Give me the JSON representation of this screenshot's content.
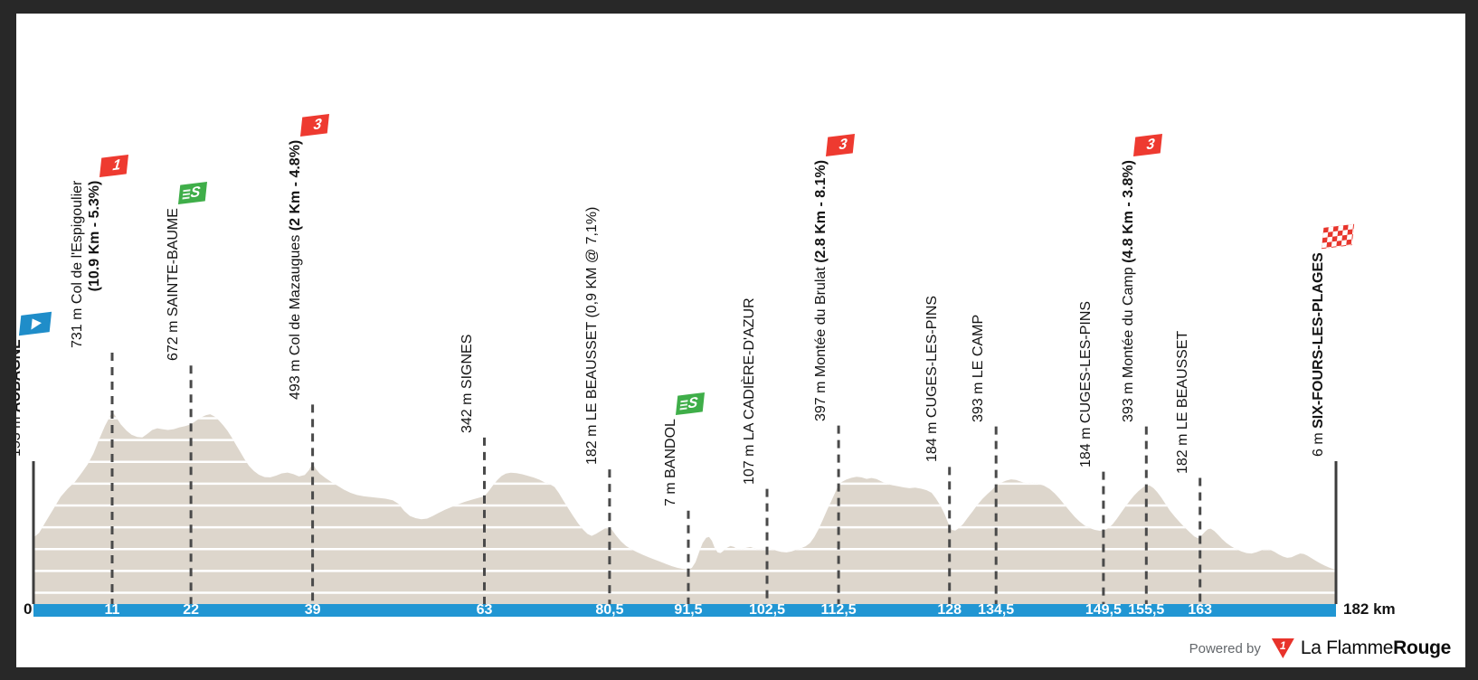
{
  "colors": {
    "frame": "#282828",
    "background": "#ffffff",
    "terrain": "#ddd6cc",
    "gridline": "#ffffff",
    "bar": "#2196d3",
    "dash": "#4a4a4a",
    "solid_line": "#3d3d3d",
    "text": "#141414",
    "cat_red": "#ee3a30",
    "sprint_green": "#3fae49",
    "start_blue": "#1f8dc9",
    "finish_red": "#e8352c",
    "brand_red": "#e8332b",
    "powered_gray": "#63676b"
  },
  "axis": {
    "zero_label": "0",
    "end_label": "182 km",
    "ticks": [
      {
        "km": 11,
        "label": "11"
      },
      {
        "km": 22,
        "label": "22"
      },
      {
        "km": 39,
        "label": "39"
      },
      {
        "km": 63,
        "label": "63"
      },
      {
        "km": 80.5,
        "label": "80,5"
      },
      {
        "km": 91.5,
        "label": "91,5"
      },
      {
        "km": 102.5,
        "label": "102,5"
      },
      {
        "km": 112.5,
        "label": "112,5"
      },
      {
        "km": 128,
        "label": "128"
      },
      {
        "km": 134.5,
        "label": "134,5"
      },
      {
        "km": 149.5,
        "label": "149,5"
      },
      {
        "km": 155.5,
        "label": "155,5"
      },
      {
        "km": 163,
        "label": "163"
      }
    ]
  },
  "markers": [
    {
      "km": 0,
      "elev": 153,
      "type": "start",
      "lines": [
        [
          {
            "t": "153 m ",
            "b": false
          },
          {
            "t": "AUBAGNE",
            "b": true
          }
        ]
      ]
    },
    {
      "km": 11,
      "elev": 731,
      "type": "cat1",
      "badge": "1",
      "lines": [
        [
          {
            "t": "731 m Col de l'Espigoulier",
            "b": false
          }
        ],
        [
          {
            "t": "(10.9 Km - 5.3%)",
            "b": true
          }
        ]
      ]
    },
    {
      "km": 22,
      "elev": 672,
      "type": "sprint",
      "badge": "S",
      "lines": [
        [
          {
            "t": "672 m SAINTE-BAUME",
            "b": false
          }
        ]
      ]
    },
    {
      "km": 39,
      "elev": 493,
      "type": "cat3",
      "badge": "3",
      "lines": [
        [
          {
            "t": "493 m Col de Mazaugues ",
            "b": false
          },
          {
            "t": "(2 Km - 4.8%)",
            "b": true
          }
        ]
      ]
    },
    {
      "km": 63,
      "elev": 342,
      "type": "plain",
      "lines": [
        [
          {
            "t": "342 m SIGNES",
            "b": false
          }
        ]
      ]
    },
    {
      "km": 80.5,
      "elev": 182,
      "type": "plain",
      "lines": [
        [
          {
            "t": "182 m LE BEAUSSET (0,9 KM @ 7,1%)",
            "b": false
          }
        ]
      ]
    },
    {
      "km": 91.5,
      "elev": 7,
      "type": "sprint",
      "badge": "S",
      "lines": [
        [
          {
            "t": "7 m BANDOL",
            "b": false
          }
        ]
      ]
    },
    {
      "km": 102.5,
      "elev": 107,
      "type": "plain",
      "lines": [
        [
          {
            "t": "107 m LA CADIÈRE-D'AZUR",
            "b": false
          }
        ]
      ]
    },
    {
      "km": 112.5,
      "elev": 397,
      "type": "cat3",
      "badge": "3",
      "lines": [
        [
          {
            "t": "397 m Montée du Brulat ",
            "b": false
          },
          {
            "t": "(2.8 Km - 8.1%)",
            "b": true
          }
        ]
      ]
    },
    {
      "km": 128,
      "elev": 184,
      "type": "plain",
      "lines": [
        [
          {
            "t": "184 m CUGES-LES-PINS",
            "b": false
          }
        ]
      ]
    },
    {
      "km": 134.5,
      "elev": 393,
      "type": "plain",
      "lines": [
        [
          {
            "t": "393 m LE CAMP",
            "b": false
          }
        ]
      ]
    },
    {
      "km": 149.5,
      "elev": 184,
      "type": "plain",
      "lines": [
        [
          {
            "t": "184 m CUGES-LES-PINS",
            "b": false
          }
        ]
      ]
    },
    {
      "km": 155.5,
      "elev": 393,
      "type": "cat3",
      "badge": "3",
      "lines": [
        [
          {
            "t": "393 m Montée du Camp ",
            "b": false
          },
          {
            "t": "(4.8 Km - 3.8%)",
            "b": true
          }
        ]
      ]
    },
    {
      "km": 163,
      "elev": 182,
      "type": "plain",
      "lines": [
        [
          {
            "t": "182 m LE BEAUSSET",
            "b": false
          }
        ]
      ]
    },
    {
      "km": 182,
      "elev": 6,
      "type": "finish",
      "lines": [
        [
          {
            "t": "6 m ",
            "b": false
          },
          {
            "t": "SIX-FOURS-LES-PLAGES",
            "b": true
          }
        ]
      ]
    }
  ],
  "footer": {
    "powered_by": "Powered by",
    "logo_digit": "1",
    "brand_regular": "La Flamme",
    "brand_bold": "Rouge"
  },
  "chart_data": {
    "type": "area",
    "x_unit": "km",
    "y_unit": "m",
    "x_range": [
      0,
      182
    ],
    "gridline_step_m": 100,
    "legend": "none",
    "waypoints": [
      {
        "km": 0,
        "elev_m": 153,
        "label": "153 m AUBAGNE",
        "marker": "start"
      },
      {
        "km": 11,
        "elev_m": 731,
        "label": "731 m Col de l'Espigoulier (10.9 Km - 5.3%)",
        "marker": "category-1"
      },
      {
        "km": 22,
        "elev_m": 672,
        "label": "672 m SAINTE-BAUME",
        "marker": "sprint"
      },
      {
        "km": 39,
        "elev_m": 493,
        "label": "493 m Col de Mazaugues (2 Km - 4.8%)",
        "marker": "category-3"
      },
      {
        "km": 63,
        "elev_m": 342,
        "label": "342 m SIGNES",
        "marker": "none"
      },
      {
        "km": 80.5,
        "elev_m": 182,
        "label": "182 m LE BEAUSSET (0,9 KM @ 7,1%)",
        "marker": "none"
      },
      {
        "km": 91.5,
        "elev_m": 7,
        "label": "7 m BANDOL",
        "marker": "sprint"
      },
      {
        "km": 102.5,
        "elev_m": 107,
        "label": "107 m LA CADIÈRE-D'AZUR",
        "marker": "none"
      },
      {
        "km": 112.5,
        "elev_m": 397,
        "label": "397 m Montée du Brulat (2.8 Km - 8.1%)",
        "marker": "category-3"
      },
      {
        "km": 128,
        "elev_m": 184,
        "label": "184 m CUGES-LES-PINS",
        "marker": "none"
      },
      {
        "km": 134.5,
        "elev_m": 393,
        "label": "393 m LE CAMP",
        "marker": "none"
      },
      {
        "km": 149.5,
        "elev_m": 184,
        "label": "184 m CUGES-LES-PINS",
        "marker": "none"
      },
      {
        "km": 155.5,
        "elev_m": 393,
        "label": "393 m Montée du Camp (4.8 Km - 3.8%)",
        "marker": "category-3"
      },
      {
        "km": 163,
        "elev_m": 182,
        "label": "182 m LE BEAUSSET",
        "marker": "none"
      },
      {
        "km": 182,
        "elev_m": 6,
        "label": "6 m SIX-FOURS-LES-PLAGES",
        "marker": "finish"
      }
    ],
    "profile": [
      [
        0,
        153
      ],
      [
        0.8,
        175
      ],
      [
        1.8,
        230
      ],
      [
        2.8,
        285
      ],
      [
        3.8,
        340
      ],
      [
        4.8,
        378
      ],
      [
        5.8,
        408
      ],
      [
        6.8,
        452
      ],
      [
        7.6,
        490
      ],
      [
        8.4,
        540
      ],
      [
        9.2,
        605
      ],
      [
        10,
        665
      ],
      [
        10.6,
        703
      ],
      [
        11,
        731
      ],
      [
        11.5,
        707
      ],
      [
        12.2,
        672
      ],
      [
        13,
        643
      ],
      [
        13.7,
        624
      ],
      [
        14.5,
        614
      ],
      [
        15.2,
        612
      ],
      [
        15.9,
        628
      ],
      [
        16.6,
        646
      ],
      [
        17.3,
        654
      ],
      [
        18,
        650
      ],
      [
        18.8,
        646
      ],
      [
        19.6,
        650
      ],
      [
        20.4,
        658
      ],
      [
        21.2,
        664
      ],
      [
        22,
        672
      ],
      [
        22.7,
        688
      ],
      [
        23.4,
        703
      ],
      [
        24.1,
        714
      ],
      [
        24.7,
        718
      ],
      [
        25.3,
        708
      ],
      [
        25.9,
        690
      ],
      [
        26.5,
        668
      ],
      [
        27.1,
        643
      ],
      [
        27.7,
        612
      ],
      [
        28.3,
        578
      ],
      [
        28.9,
        545
      ],
      [
        29.5,
        512
      ],
      [
        30.1,
        482
      ],
      [
        30.8,
        458
      ],
      [
        31.5,
        441
      ],
      [
        32.3,
        430
      ],
      [
        33.1,
        429
      ],
      [
        33.9,
        437
      ],
      [
        34.7,
        447
      ],
      [
        35.5,
        451
      ],
      [
        36.3,
        444
      ],
      [
        37.1,
        433
      ],
      [
        37.9,
        440
      ],
      [
        38.5,
        462
      ],
      [
        39,
        493
      ],
      [
        39.4,
        470
      ],
      [
        40,
        446
      ],
      [
        40.8,
        426
      ],
      [
        41.6,
        408
      ],
      [
        42.5,
        390
      ],
      [
        43.4,
        372
      ],
      [
        44.3,
        358
      ],
      [
        45.2,
        348
      ],
      [
        46.2,
        342
      ],
      [
        47.2,
        338
      ],
      [
        48.2,
        335
      ],
      [
        49.2,
        331
      ],
      [
        50.2,
        324
      ],
      [
        51,
        308
      ],
      [
        51.8,
        275
      ],
      [
        52.6,
        252
      ],
      [
        53.4,
        242
      ],
      [
        54.2,
        237
      ],
      [
        55,
        240
      ],
      [
        55.8,
        252
      ],
      [
        56.6,
        266
      ],
      [
        57.5,
        280
      ],
      [
        58.4,
        293
      ],
      [
        59.3,
        305
      ],
      [
        60.2,
        316
      ],
      [
        61.2,
        326
      ],
      [
        62.1,
        334
      ],
      [
        63,
        342
      ],
      [
        63.6,
        365
      ],
      [
        64.2,
        392
      ],
      [
        64.8,
        416
      ],
      [
        65.4,
        435
      ],
      [
        66,
        446
      ],
      [
        66.7,
        450
      ],
      [
        67.5,
        448
      ],
      [
        68.3,
        443
      ],
      [
        69.1,
        436
      ],
      [
        69.9,
        428
      ],
      [
        70.7,
        418
      ],
      [
        71.5,
        405
      ],
      [
        72.2,
        396
      ],
      [
        72.8,
        385
      ],
      [
        73.4,
        358
      ],
      [
        74,
        325
      ],
      [
        74.7,
        288
      ],
      [
        75.4,
        252
      ],
      [
        76.1,
        218
      ],
      [
        76.8,
        190
      ],
      [
        77.4,
        170
      ],
      [
        78,
        161
      ],
      [
        78.6,
        170
      ],
      [
        79.2,
        182
      ],
      [
        79.8,
        194
      ],
      [
        80.3,
        200
      ],
      [
        80.8,
        190
      ],
      [
        81.4,
        163
      ],
      [
        82.1,
        135
      ],
      [
        82.8,
        115
      ],
      [
        83.6,
        98
      ],
      [
        84.4,
        85
      ],
      [
        85.2,
        73
      ],
      [
        86,
        62
      ],
      [
        86.8,
        52
      ],
      [
        87.6,
        42
      ],
      [
        88.4,
        32
      ],
      [
        89.2,
        22
      ],
      [
        90,
        14
      ],
      [
        90.8,
        9
      ],
      [
        91.5,
        7
      ],
      [
        92,
        14
      ],
      [
        92.5,
        40
      ],
      [
        93,
        85
      ],
      [
        93.5,
        128
      ],
      [
        94,
        152
      ],
      [
        94.4,
        156
      ],
      [
        94.8,
        138
      ],
      [
        95.2,
        105
      ],
      [
        95.6,
        85
      ],
      [
        96,
        82
      ],
      [
        96.4,
        92
      ],
      [
        96.9,
        106
      ],
      [
        97.4,
        115
      ],
      [
        97.9,
        110
      ],
      [
        98.4,
        98
      ],
      [
        99,
        97
      ],
      [
        99.6,
        106
      ],
      [
        100.2,
        110
      ],
      [
        100.8,
        102
      ],
      [
        101.4,
        98
      ],
      [
        102,
        102
      ],
      [
        102.5,
        107
      ],
      [
        103.1,
        101
      ],
      [
        103.8,
        93
      ],
      [
        104.5,
        87
      ],
      [
        105.2,
        85
      ],
      [
        105.9,
        89
      ],
      [
        106.6,
        97
      ],
      [
        107.3,
        105
      ],
      [
        107.9,
        113
      ],
      [
        108.5,
        128
      ],
      [
        109.1,
        155
      ],
      [
        109.7,
        192
      ],
      [
        110.3,
        235
      ],
      [
        110.9,
        280
      ],
      [
        111.5,
        322
      ],
      [
        112,
        358
      ],
      [
        112.5,
        397
      ],
      [
        113,
        409
      ],
      [
        113.6,
        419
      ],
      [
        114.3,
        427
      ],
      [
        115,
        432
      ],
      [
        115.7,
        429
      ],
      [
        116.4,
        422
      ],
      [
        117.1,
        426
      ],
      [
        117.8,
        421
      ],
      [
        118.5,
        410
      ],
      [
        119.2,
        400
      ],
      [
        120,
        393
      ],
      [
        120.8,
        388
      ],
      [
        121.6,
        383
      ],
      [
        122.4,
        379
      ],
      [
        123.2,
        382
      ],
      [
        124,
        377
      ],
      [
        124.8,
        370
      ],
      [
        125.5,
        358
      ],
      [
        126.1,
        332
      ],
      [
        126.7,
        300
      ],
      [
        127.3,
        262
      ],
      [
        127.8,
        220
      ],
      [
        128.3,
        188
      ],
      [
        128.8,
        185
      ],
      [
        129.3,
        196
      ],
      [
        129.9,
        215
      ],
      [
        130.5,
        242
      ],
      [
        131.2,
        272
      ],
      [
        131.9,
        303
      ],
      [
        132.6,
        330
      ],
      [
        133.3,
        353
      ],
      [
        134,
        373
      ],
      [
        134.5,
        393
      ],
      [
        135.2,
        404
      ],
      [
        135.9,
        414
      ],
      [
        136.6,
        420
      ],
      [
        137.3,
        417
      ],
      [
        138,
        409
      ],
      [
        138.8,
        401
      ],
      [
        139.6,
        404
      ],
      [
        140.4,
        399
      ],
      [
        141.2,
        391
      ],
      [
        142,
        376
      ],
      [
        142.7,
        355
      ],
      [
        143.4,
        330
      ],
      [
        144.1,
        302
      ],
      [
        144.8,
        274
      ],
      [
        145.5,
        248
      ],
      [
        146.2,
        226
      ],
      [
        146.9,
        208
      ],
      [
        147.6,
        196
      ],
      [
        148.3,
        188
      ],
      [
        149,
        184
      ],
      [
        149.6,
        186
      ],
      [
        150.2,
        196
      ],
      [
        150.8,
        214
      ],
      [
        151.4,
        240
      ],
      [
        152,
        268
      ],
      [
        152.6,
        296
      ],
      [
        153.2,
        322
      ],
      [
        153.8,
        346
      ],
      [
        154.4,
        366
      ],
      [
        155,
        382
      ],
      [
        155.5,
        393
      ],
      [
        156,
        391
      ],
      [
        156.5,
        380
      ],
      [
        157,
        362
      ],
      [
        157.6,
        336
      ],
      [
        158.2,
        306
      ],
      [
        158.8,
        276
      ],
      [
        159.5,
        248
      ],
      [
        160.2,
        222
      ],
      [
        160.9,
        198
      ],
      [
        161.6,
        176
      ],
      [
        162.2,
        158
      ],
      [
        162.7,
        150
      ],
      [
        163.2,
        162
      ],
      [
        163.7,
        180
      ],
      [
        164.1,
        191
      ],
      [
        164.5,
        194
      ],
      [
        165,
        183
      ],
      [
        165.5,
        166
      ],
      [
        166.1,
        146
      ],
      [
        166.7,
        128
      ],
      [
        167.4,
        112
      ],
      [
        168.1,
        99
      ],
      [
        168.8,
        89
      ],
      [
        169.5,
        82
      ],
      [
        170.2,
        80
      ],
      [
        170.9,
        86
      ],
      [
        171.6,
        95
      ],
      [
        172.2,
        100
      ],
      [
        172.8,
        97
      ],
      [
        173.4,
        88
      ],
      [
        174,
        76
      ],
      [
        174.6,
        66
      ],
      [
        175.2,
        60
      ],
      [
        175.8,
        63
      ],
      [
        176.4,
        72
      ],
      [
        177,
        80
      ],
      [
        177.5,
        78
      ],
      [
        178,
        70
      ],
      [
        178.6,
        58
      ],
      [
        179.2,
        46
      ],
      [
        179.8,
        35
      ],
      [
        180.4,
        25
      ],
      [
        181,
        16
      ],
      [
        181.5,
        10
      ],
      [
        182,
        6
      ]
    ]
  }
}
